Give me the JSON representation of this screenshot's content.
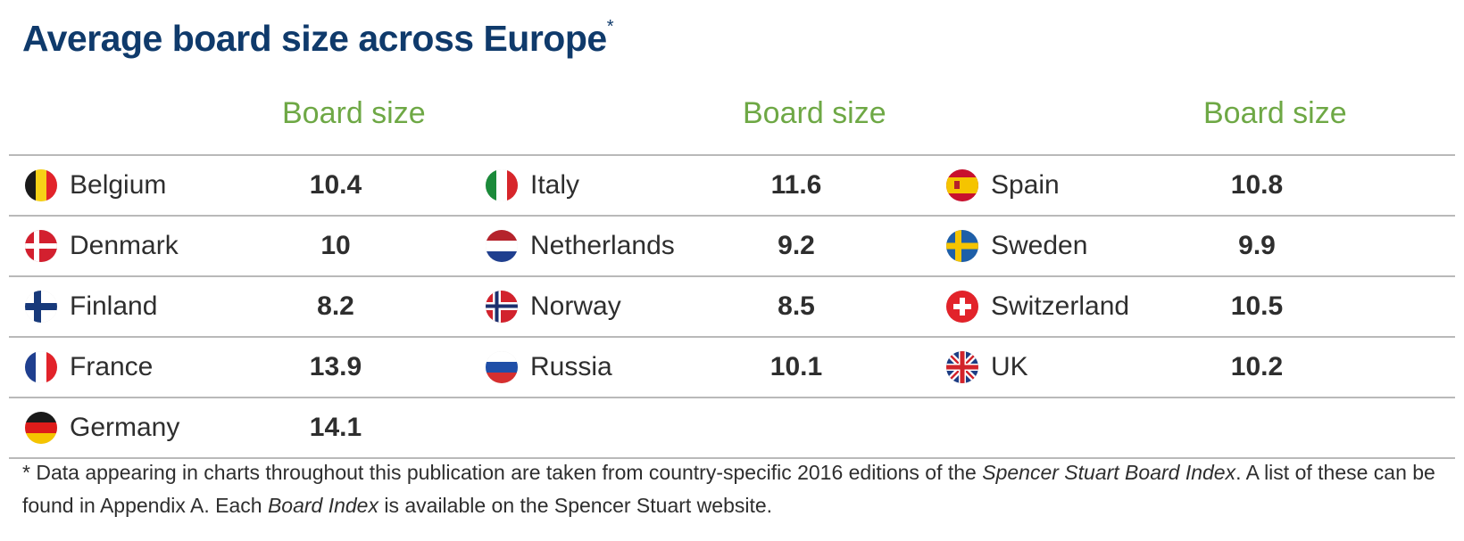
{
  "title": "Average board size across Europe",
  "title_mark": "*",
  "column_header": "Board size",
  "colors": {
    "title": "#0f3a6b",
    "header": "#6ea845",
    "text": "#2e2e2e",
    "rule": "#b9b9b9"
  },
  "chart_data": {
    "type": "table",
    "title": "Average board size across Europe",
    "columns": [
      "Board size"
    ],
    "rows": [
      {
        "country": "Belgium",
        "board_size": 10.4
      },
      {
        "country": "Denmark",
        "board_size": 10
      },
      {
        "country": "Finland",
        "board_size": 8.2
      },
      {
        "country": "France",
        "board_size": 13.9
      },
      {
        "country": "Germany",
        "board_size": 14.1
      },
      {
        "country": "Italy",
        "board_size": 11.6
      },
      {
        "country": "Netherlands",
        "board_size": 9.2
      },
      {
        "country": "Norway",
        "board_size": 8.5
      },
      {
        "country": "Russia",
        "board_size": 10.1
      },
      {
        "country": "Spain",
        "board_size": 10.8
      },
      {
        "country": "Sweden",
        "board_size": 9.9
      },
      {
        "country": "Switzerland",
        "board_size": 10.5
      },
      {
        "country": "UK",
        "board_size": 10.2
      }
    ]
  },
  "table_groups": [
    [
      {
        "country": "Belgium",
        "value": "10.4",
        "flag": "belgium-flag-icon"
      },
      {
        "country": "Denmark",
        "value": "10",
        "flag": "denmark-flag-icon"
      },
      {
        "country": "Finland",
        "value": "8.2",
        "flag": "finland-flag-icon"
      },
      {
        "country": "France",
        "value": "13.9",
        "flag": "france-flag-icon"
      },
      {
        "country": "Germany",
        "value": "14.1",
        "flag": "germany-flag-icon"
      }
    ],
    [
      {
        "country": "Italy",
        "value": "11.6",
        "flag": "italy-flag-icon"
      },
      {
        "country": "Netherlands",
        "value": "9.2",
        "flag": "netherlands-flag-icon"
      },
      {
        "country": "Norway",
        "value": "8.5",
        "flag": "norway-flag-icon"
      },
      {
        "country": "Russia",
        "value": "10.1",
        "flag": "russia-flag-icon"
      }
    ],
    [
      {
        "country": "Spain",
        "value": "10.8",
        "flag": "spain-flag-icon"
      },
      {
        "country": "Sweden",
        "value": "9.9",
        "flag": "sweden-flag-icon"
      },
      {
        "country": "Switzerland",
        "value": "10.5",
        "flag": "switzerland-flag-icon"
      },
      {
        "country": "UK",
        "value": "10.2",
        "flag": "uk-flag-icon"
      }
    ]
  ],
  "footnote": {
    "part1": "* Data appearing in charts throughout this publication are taken from country-specific 2016 editions of the ",
    "italic1": "Spencer Stuart Board Index",
    "part2": ". A list of these can be found in Appendix A. Each ",
    "italic2": "Board Index",
    "part3": " is available on the Spencer Stuart website."
  }
}
